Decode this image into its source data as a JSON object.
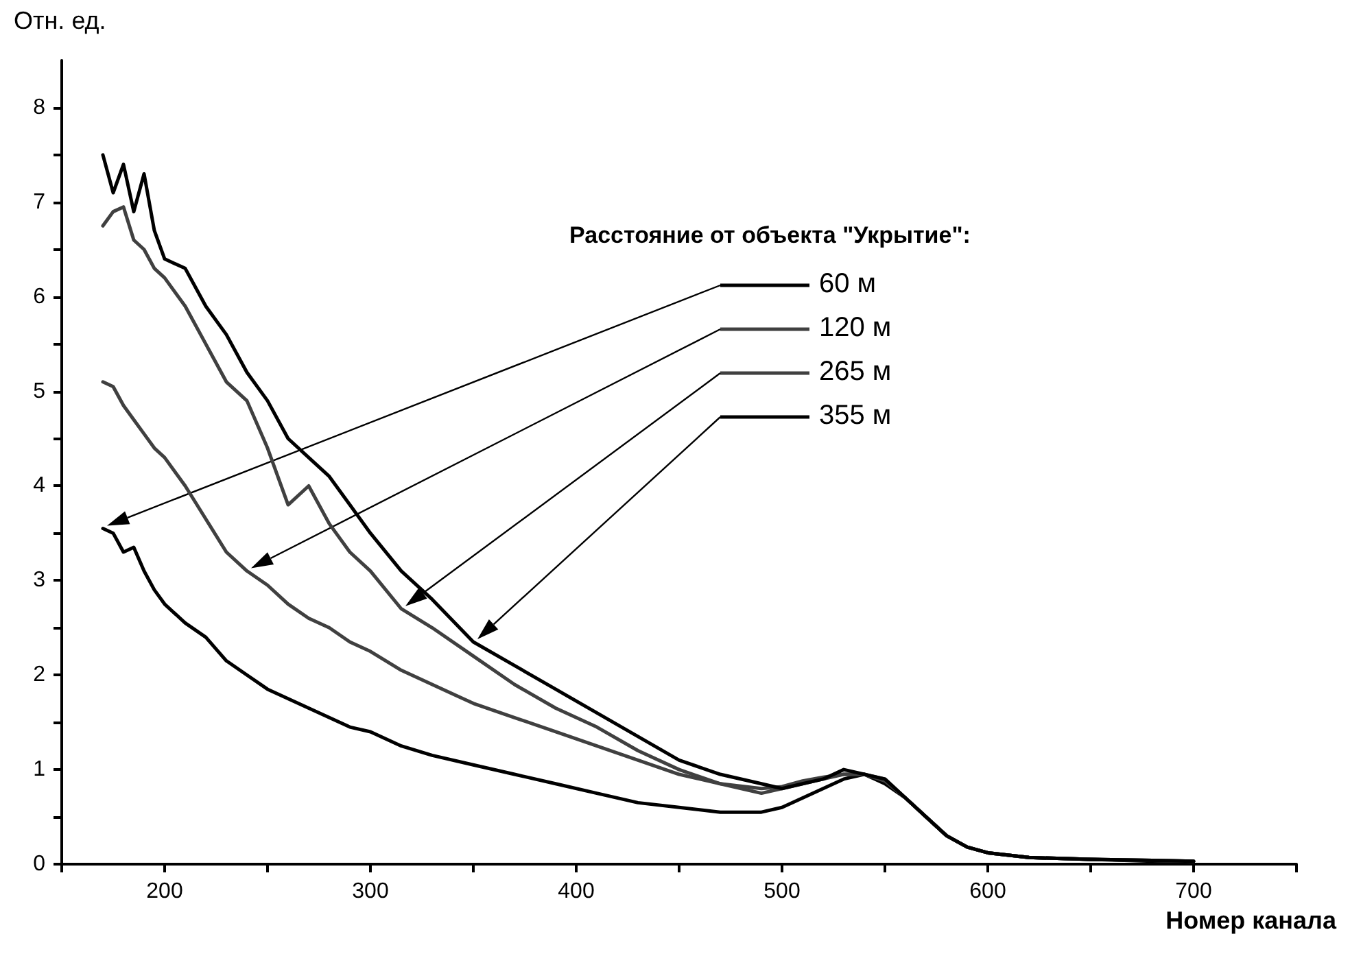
{
  "chart_data": {
    "type": "line",
    "xlabel": "Номер канала",
    "ylabel": "Отн. ед.",
    "legend_title": "Расстояние от объекта \"Укрытие\":",
    "x": [
      170,
      175,
      180,
      185,
      190,
      195,
      200,
      210,
      220,
      230,
      240,
      250,
      260,
      270,
      280,
      290,
      300,
      315,
      330,
      350,
      370,
      390,
      410,
      430,
      450,
      470,
      490,
      500,
      510,
      520,
      530,
      540,
      550,
      560,
      570,
      580,
      590,
      600,
      620,
      650,
      680,
      700
    ],
    "series": [
      {
        "name": "60 м",
        "color": "#000000",
        "values": [
          3.55,
          3.5,
          3.3,
          3.35,
          3.1,
          2.9,
          2.75,
          2.55,
          2.4,
          2.15,
          2.0,
          1.85,
          1.75,
          1.65,
          1.55,
          1.45,
          1.4,
          1.25,
          1.15,
          1.05,
          0.95,
          0.85,
          0.75,
          0.65,
          0.6,
          0.55,
          0.55,
          0.6,
          0.7,
          0.8,
          0.9,
          0.95,
          0.85,
          0.7,
          0.5,
          0.3,
          0.18,
          0.12,
          0.07,
          0.05,
          0.03,
          0.03
        ]
      },
      {
        "name": "120 м",
        "color": "#404040",
        "values": [
          5.1,
          5.05,
          4.85,
          4.7,
          4.55,
          4.4,
          4.3,
          4.0,
          3.65,
          3.3,
          3.1,
          2.95,
          2.75,
          2.6,
          2.5,
          2.35,
          2.25,
          2.05,
          1.9,
          1.7,
          1.55,
          1.4,
          1.25,
          1.1,
          0.95,
          0.85,
          0.8,
          0.82,
          0.88,
          0.92,
          0.95,
          0.95,
          0.88,
          0.7,
          0.5,
          0.3,
          0.18,
          0.12,
          0.07,
          0.05,
          0.04,
          0.03
        ]
      },
      {
        "name": "265 м",
        "color": "#404040",
        "values": [
          6.75,
          6.9,
          6.95,
          6.6,
          6.5,
          6.3,
          6.2,
          5.9,
          5.5,
          5.1,
          4.9,
          4.4,
          3.8,
          4.0,
          3.6,
          3.3,
          3.1,
          2.7,
          2.5,
          2.2,
          1.9,
          1.65,
          1.45,
          1.2,
          1.0,
          0.85,
          0.75,
          0.8,
          0.85,
          0.9,
          0.95,
          0.95,
          0.9,
          0.7,
          0.5,
          0.3,
          0.18,
          0.12,
          0.07,
          0.05,
          0.04,
          0.03
        ]
      },
      {
        "name": "355 м",
        "color": "#000000",
        "values": [
          7.5,
          7.1,
          7.4,
          6.9,
          7.3,
          6.7,
          6.4,
          6.3,
          5.9,
          5.6,
          5.2,
          4.9,
          4.5,
          4.3,
          4.1,
          3.8,
          3.5,
          3.1,
          2.8,
          2.35,
          2.1,
          1.85,
          1.6,
          1.35,
          1.1,
          0.95,
          0.85,
          0.8,
          0.85,
          0.9,
          1.0,
          0.95,
          0.9,
          0.7,
          0.5,
          0.3,
          0.18,
          0.12,
          0.07,
          0.05,
          0.04,
          0.03
        ]
      }
    ],
    "xlim": [
      150,
      750
    ],
    "xticks": [
      {
        "value": 150,
        "label": null
      },
      200,
      {
        "value": 250,
        "label": null
      },
      300,
      {
        "value": 350,
        "label": null
      },
      400,
      {
        "value": 450,
        "label": null
      },
      500,
      {
        "value": 550,
        "label": null
      },
      600,
      {
        "value": 650,
        "label": null
      },
      700,
      {
        "value": 750,
        "label": null
      }
    ],
    "ylim": [
      0,
      8.5
    ],
    "yticks": [
      0,
      {
        "value": 0.5,
        "label": null
      },
      1,
      {
        "value": 1.5,
        "label": null
      },
      2,
      {
        "value": 2.5,
        "label": null
      },
      3,
      {
        "value": 3.5,
        "label": null
      },
      4,
      {
        "value": 4.5,
        "label": null
      },
      5,
      {
        "value": 5.5,
        "label": null
      },
      6,
      {
        "value": 6.5,
        "label": null
      },
      7,
      {
        "value": 7.5,
        "label": null
      },
      8
    ],
    "grid": false,
    "legend": "top right",
    "marker": "none",
    "line_style": "solid"
  }
}
